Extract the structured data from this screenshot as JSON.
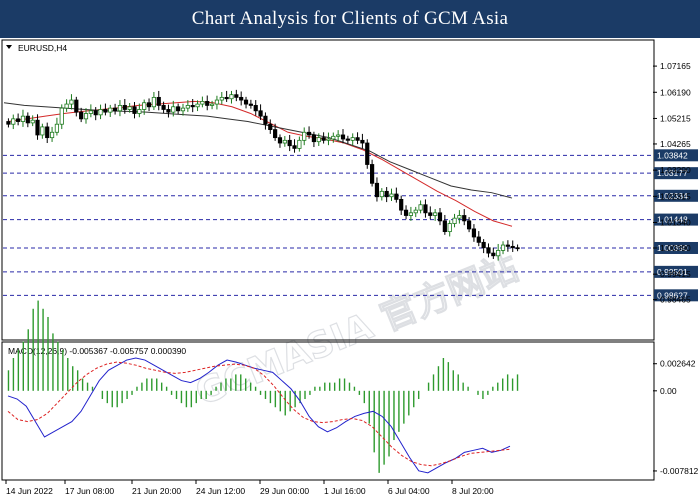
{
  "banner": {
    "title": "Chart Analysis for Clients of GCM Asia"
  },
  "watermark": "GCMASIA 官方网站",
  "chart_data": {
    "type": "candlestick",
    "symbol_label": "EURUSD,H4",
    "ylim": [
      0.97,
      1.081
    ],
    "y_ticks": [
      {
        "value": 1.07165,
        "label": "1.07165"
      },
      {
        "value": 1.0619,
        "label": "1.06190"
      },
      {
        "value": 1.05215,
        "label": "1.05215"
      },
      {
        "value": 1.04265,
        "label": "1.04265"
      },
      {
        "value": 1.0329,
        "label": "1.03290"
      },
      {
        "value": 1.02315,
        "label": "1.02315"
      },
      {
        "value": 1.0134,
        "label": "1.01340"
      },
      {
        "value": 1.0039,
        "label": "1.00390"
      },
      {
        "value": 0.99415,
        "label": "0.99415"
      },
      {
        "value": 0.98465,
        "label": "0.98465"
      }
    ],
    "levels": [
      {
        "value": 1.03842,
        "label": "1.03842"
      },
      {
        "value": 1.03177,
        "label": "1.03177"
      },
      {
        "value": 1.02334,
        "label": "1.02334"
      },
      {
        "value": 1.01448,
        "label": "1.01448"
      },
      {
        "value": 1.0039,
        "label": "1.00390"
      },
      {
        "value": 0.99501,
        "label": "0.99501"
      },
      {
        "value": 0.98627,
        "label": "0.98627"
      }
    ],
    "price_candles": [
      1.05,
      1.052,
      1.051,
      1.053,
      1.0505,
      1.0515,
      1.046,
      1.049,
      1.045,
      1.047,
      1.05,
      1.056,
      1.0575,
      1.059,
      1.0545,
      1.052,
      1.054,
      1.055,
      1.0535,
      1.0555,
      1.0545,
      1.056,
      1.055,
      1.057,
      1.0555,
      1.0565,
      1.054,
      1.0555,
      1.058,
      1.0565,
      1.06,
      1.057,
      1.0555,
      1.0545,
      1.0565,
      1.055,
      1.056,
      1.057,
      1.0565,
      1.0575,
      1.0585,
      1.057,
      1.0575,
      1.059,
      1.06,
      1.0595,
      1.061,
      1.06,
      1.059,
      1.0575,
      1.057,
      1.055,
      1.053,
      1.05,
      1.048,
      1.045,
      1.043,
      1.044,
      1.042,
      1.041,
      1.044,
      1.047,
      1.046,
      1.0435,
      1.045,
      1.044,
      1.0445,
      1.0455,
      1.046,
      1.0445,
      1.044,
      1.045,
      1.044,
      1.043,
      1.035,
      1.028,
      1.023,
      1.025,
      1.023,
      1.024,
      1.022,
      1.018,
      1.016,
      1.017,
      1.018,
      1.02,
      1.017,
      1.016,
      1.017,
      1.014,
      1.01,
      1.013,
      1.015,
      1.016,
      1.014,
      1.011,
      1.008,
      1.006,
      1.004,
      1.002,
      1.001,
      1.003,
      1.005,
      1.0045,
      1.004,
      1.0039
    ],
    "ma_fast": [
      1.051,
      1.052,
      1.053,
      1.054,
      1.0548,
      1.0555,
      1.0562,
      1.057,
      1.0575,
      1.058,
      1.0585,
      1.058,
      1.0565,
      1.054,
      1.0505,
      1.047,
      1.0455,
      1.0445,
      1.043,
      1.0405,
      1.037,
      1.033,
      1.029,
      1.025,
      1.0215,
      1.0175,
      1.014,
      1.012
    ],
    "ma_slow": [
      1.058,
      1.057,
      1.0565,
      1.056,
      1.0555,
      1.055,
      1.0548,
      1.0545,
      1.054,
      1.0535,
      1.053,
      1.052,
      1.051,
      1.0495,
      1.048,
      1.0465,
      1.045,
      1.0425,
      1.04,
      1.036,
      1.033,
      1.03,
      1.027,
      1.0255,
      1.0245,
      1.0225
    ],
    "macd_label": "MACD(12,26,9) -0.005367 -0.005757 0.000390",
    "macd_ylim": [
      -0.0085,
      0.0032
    ],
    "macd_ticks": [
      {
        "value": 0.002642,
        "label": "0.002642"
      },
      {
        "value": 0.0,
        "label": "0.00"
      },
      {
        "value": -0.007812,
        "label": "-0.007812"
      }
    ],
    "macd_hist": [
      0.0005,
      0.0008,
      0.001,
      0.0012,
      0.0015,
      0.002,
      0.0022,
      0.002,
      0.0018,
      0.0014,
      0.0012,
      0.001,
      0.0008,
      0.0006,
      0.0005,
      0.0003,
      0.0002,
      0.0001,
      0.0,
      -0.0002,
      -0.0003,
      -0.0004,
      -0.0004,
      -0.0003,
      -0.0002,
      -0.0001,
      0.0001,
      0.0002,
      0.0003,
      0.0003,
      0.0003,
      0.0002,
      0.0001,
      -0.0001,
      -0.0002,
      -0.0003,
      -0.0004,
      -0.0004,
      -0.0003,
      -0.0002,
      -0.0002,
      -0.0001,
      0.0001,
      0.0002,
      0.0003,
      0.0003,
      0.0004,
      0.0004,
      0.0003,
      0.0002,
      0.0001,
      -0.0001,
      -0.0002,
      -0.0003,
      -0.0004,
      -0.0005,
      -0.0006,
      -0.0005,
      -0.0004,
      -0.0003,
      -0.0002,
      -0.0001,
      0.0001,
      0.0001,
      0.0002,
      0.0002,
      0.0002,
      0.0003,
      0.0003,
      0.0002,
      0.0001,
      -0.0001,
      -0.0003,
      -0.0008,
      -0.0015,
      -0.002,
      -0.0018,
      -0.0016,
      -0.0012,
      -0.001,
      -0.0008,
      -0.0006,
      -0.0004,
      -0.0002,
      0.0,
      0.0002,
      0.0004,
      0.0006,
      0.0008,
      0.0007,
      0.0005,
      0.0004,
      0.0002,
      0.0001,
      0.0,
      -0.0001,
      -0.0002,
      -0.0001,
      0.0001,
      0.0002,
      0.0003,
      0.0004,
      0.0003,
      0.0004
    ],
    "macd_main": [
      -0.0005,
      -0.0008,
      -0.0015,
      -0.003,
      -0.0045,
      -0.004,
      -0.0035,
      -0.003,
      -0.002,
      -0.0005,
      0.001,
      0.002,
      0.0025,
      0.003,
      0.0032,
      0.003,
      0.0025,
      0.002,
      0.0015,
      0.001,
      0.0008,
      0.0012,
      0.0018,
      0.0025,
      0.003,
      0.0028,
      0.0025,
      0.0022,
      0.002,
      0.0018,
      0.001,
      0.0002,
      -0.001,
      -0.0025,
      -0.0035,
      -0.004,
      -0.0036,
      -0.003,
      -0.0025,
      -0.0022,
      -0.002,
      -0.0025,
      -0.0035,
      -0.005,
      -0.0065,
      -0.0078,
      -0.008,
      -0.0075,
      -0.007,
      -0.0066,
      -0.006,
      -0.0058,
      -0.0056,
      -0.006,
      -0.0058,
      -0.0054
    ],
    "macd_signal": [
      -0.002,
      -0.0028,
      -0.003,
      -0.0028,
      -0.0022,
      -0.0012,
      -0.0002,
      0.0008,
      0.0016,
      0.0022,
      0.0026,
      0.0028,
      0.0027,
      0.0025,
      0.0022,
      0.002,
      0.0018,
      0.0017,
      0.0018,
      0.002,
      0.0022,
      0.0024,
      0.0025,
      0.0026,
      0.0025,
      0.0022,
      0.0015,
      0.0005,
      -0.0007,
      -0.0018,
      -0.0026,
      -0.003,
      -0.0031,
      -0.003,
      -0.0028,
      -0.0027,
      -0.0029,
      -0.0035,
      -0.0045,
      -0.0055,
      -0.0063,
      -0.0069,
      -0.0072,
      -0.0073,
      -0.0071,
      -0.0068,
      -0.0064,
      -0.0061,
      -0.006,
      -0.0059,
      -0.0058,
      -0.0057
    ],
    "x_labels": [
      "14 Jun 2022",
      "17 Jun 08:00",
      "21 Jun 20:00",
      "24 Jun 12:00",
      "29 Jun 00:00",
      "1 Jul 16:00",
      "6 Jul 04:00",
      "8 Jul 20:00"
    ],
    "colors": {
      "up": "#1c7a1c",
      "down": "#000000",
      "ma_fast": "#d42a2a",
      "ma_slow": "#333333",
      "level": "#2a2aa8",
      "level_box": "#1b3b66",
      "hist": "#2e9a2e",
      "macd": "#2222cc",
      "signal": "#dd2222"
    }
  }
}
